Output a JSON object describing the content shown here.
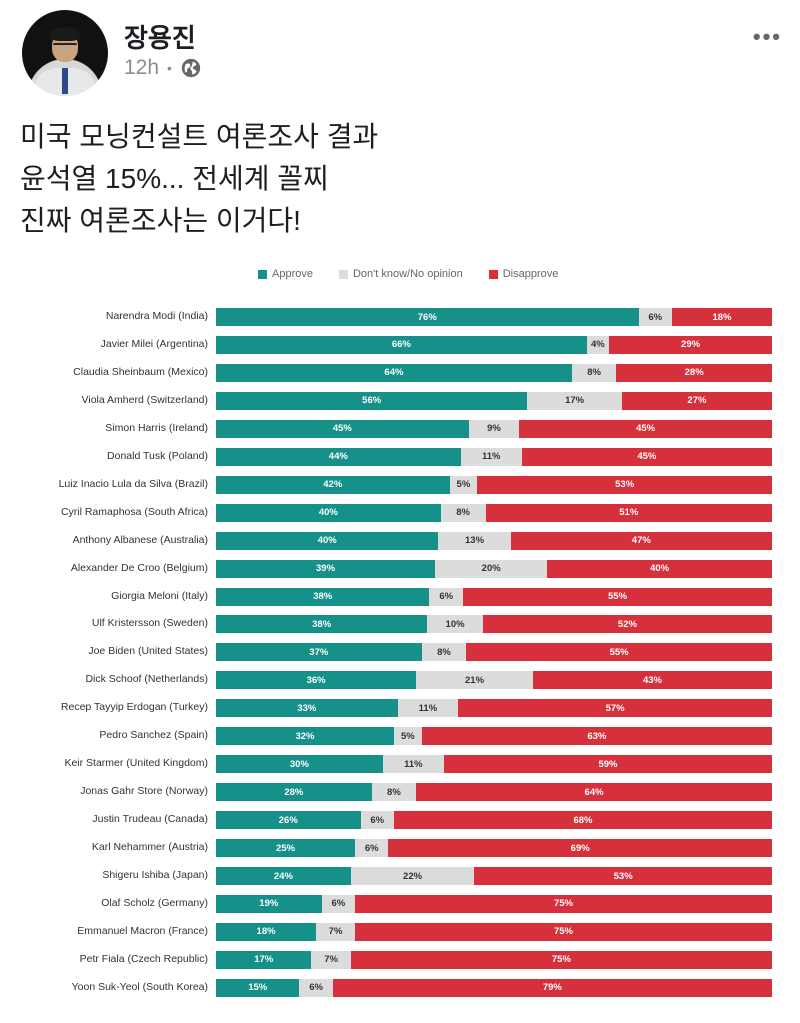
{
  "post": {
    "author": "장용진",
    "time": "12h",
    "more_label": "•••",
    "text_lines": [
      "미국 모닝컨설트 여론조사 결과",
      "윤석열 15%... 전세계 꼴찌",
      "진짜 여론조사는 이거다!"
    ]
  },
  "colors": {
    "approve": "#16918a",
    "neutral": "#dcdcdc",
    "disapprove": "#d6303c"
  },
  "chart_data": {
    "type": "bar",
    "orientation": "horizontal-stacked-100",
    "legend": {
      "approve": "Approve",
      "neutral": "Don't know/No opinion",
      "disapprove": "Disapprove"
    },
    "legend_position": "top",
    "rows": [
      {
        "leader": "Narendra Modi (India)",
        "approve": 76,
        "neutral": 6,
        "disapprove": 18
      },
      {
        "leader": "Javier Milei (Argentina)",
        "approve": 66,
        "neutral": 4,
        "disapprove": 29
      },
      {
        "leader": "Claudia Sheinbaum (Mexico)",
        "approve": 64,
        "neutral": 8,
        "disapprove": 28
      },
      {
        "leader": "Viola Amherd (Switzerland)",
        "approve": 56,
        "neutral": 17,
        "disapprove": 27
      },
      {
        "leader": "Simon Harris (Ireland)",
        "approve": 45,
        "neutral": 9,
        "disapprove": 45
      },
      {
        "leader": "Donald Tusk (Poland)",
        "approve": 44,
        "neutral": 11,
        "disapprove": 45
      },
      {
        "leader": "Luiz Inacio Lula da Silva (Brazil)",
        "approve": 42,
        "neutral": 5,
        "disapprove": 53
      },
      {
        "leader": "Cyril Ramaphosa (South Africa)",
        "approve": 40,
        "neutral": 8,
        "disapprove": 51
      },
      {
        "leader": "Anthony Albanese (Australia)",
        "approve": 40,
        "neutral": 13,
        "disapprove": 47
      },
      {
        "leader": "Alexander De Croo (Belgium)",
        "approve": 39,
        "neutral": 20,
        "disapprove": 40
      },
      {
        "leader": "Giorgia Meloni (Italy)",
        "approve": 38,
        "neutral": 6,
        "disapprove": 55
      },
      {
        "leader": "Ulf Kristersson (Sweden)",
        "approve": 38,
        "neutral": 10,
        "disapprove": 52
      },
      {
        "leader": "Joe Biden (United States)",
        "approve": 37,
        "neutral": 8,
        "disapprove": 55
      },
      {
        "leader": "Dick Schoof (Netherlands)",
        "approve": 36,
        "neutral": 21,
        "disapprove": 43
      },
      {
        "leader": "Recep Tayyip Erdogan (Turkey)",
        "approve": 33,
        "neutral": 11,
        "disapprove": 57
      },
      {
        "leader": "Pedro Sanchez (Spain)",
        "approve": 32,
        "neutral": 5,
        "disapprove": 63
      },
      {
        "leader": "Keir Starmer (United Kingdom)",
        "approve": 30,
        "neutral": 11,
        "disapprove": 59
      },
      {
        "leader": "Jonas Gahr Store (Norway)",
        "approve": 28,
        "neutral": 8,
        "disapprove": 64
      },
      {
        "leader": "Justin Trudeau (Canada)",
        "approve": 26,
        "neutral": 6,
        "disapprove": 68
      },
      {
        "leader": "Karl Nehammer (Austria)",
        "approve": 25,
        "neutral": 6,
        "disapprove": 69
      },
      {
        "leader": "Shigeru Ishiba (Japan)",
        "approve": 24,
        "neutral": 22,
        "disapprove": 53
      },
      {
        "leader": "Olaf Scholz (Germany)",
        "approve": 19,
        "neutral": 6,
        "disapprove": 75
      },
      {
        "leader": "Emmanuel Macron (France)",
        "approve": 18,
        "neutral": 7,
        "disapprove": 75
      },
      {
        "leader": "Petr Fiala (Czech Republic)",
        "approve": 17,
        "neutral": 7,
        "disapprove": 75
      },
      {
        "leader": "Yoon Suk-Yeol (South Korea)",
        "approve": 15,
        "neutral": 6,
        "disapprove": 79
      }
    ]
  }
}
